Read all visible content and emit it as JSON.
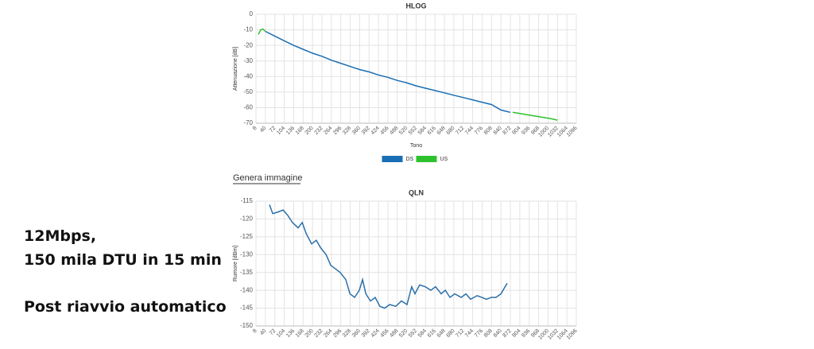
{
  "notes": [
    "12Mbps,",
    "150 mila DTU in 15 min",
    "Post riavvio automatico"
  ],
  "link": "Genera immagine",
  "chart_data": [
    {
      "type": "line",
      "title": "HLOG",
      "xlabel": "Tono",
      "ylabel": "Attenuazione [dB]",
      "xlim": [
        8,
        1096
      ],
      "ylim": [
        -70,
        0
      ],
      "xticks": [
        8,
        40,
        72,
        104,
        136,
        168,
        200,
        232,
        264,
        296,
        328,
        360,
        392,
        424,
        456,
        488,
        520,
        552,
        584,
        616,
        648,
        680,
        712,
        744,
        776,
        808,
        840,
        872,
        904,
        936,
        968,
        1000,
        1032,
        1064,
        1096
      ],
      "yticks": [
        -70,
        -60,
        -50,
        -40,
        -30,
        -20,
        -10,
        0
      ],
      "grid": true,
      "series": [
        {
          "name": "DS",
          "color": "#1a6eb5",
          "x": [
            40,
            72,
            104,
            136,
            168,
            200,
            232,
            264,
            296,
            328,
            360,
            392,
            424,
            456,
            488,
            520,
            552,
            584,
            616,
            648,
            680,
            712,
            744,
            776,
            808,
            840,
            872
          ],
          "values": [
            -11,
            -14,
            -17,
            -20,
            -22.5,
            -25,
            -27,
            -29.5,
            -31.5,
            -33.5,
            -35.5,
            -37,
            -39,
            -40.5,
            -42.5,
            -44,
            -46,
            -47.5,
            -49,
            -50.5,
            -52,
            -53.5,
            -55,
            -56.5,
            -58,
            -61.5,
            -63
          ]
        },
        {
          "name": "US",
          "color": "#2ec12e",
          "x": [
            16,
            24,
            32,
            40,
            56,
            880,
            912,
            944,
            976,
            1008,
            1032
          ],
          "values": [
            -13,
            -10,
            -9.5,
            -11,
            null,
            -63,
            -64,
            -65,
            -66,
            -67,
            -68
          ]
        }
      ]
    },
    {
      "type": "line",
      "title": "QLN",
      "ylabel": "Rumore [dBm]",
      "xlim": [
        8,
        1096
      ],
      "ylim": [
        -150,
        -115
      ],
      "xticks": [
        8,
        40,
        72,
        104,
        136,
        168,
        200,
        232,
        264,
        296,
        328,
        360,
        392,
        424,
        456,
        488,
        520,
        552,
        584,
        616,
        648,
        680,
        712,
        744,
        776,
        808,
        840,
        872,
        904,
        936,
        968,
        1000,
        1032,
        1064,
        1096
      ],
      "yticks": [
        -150,
        -145,
        -140,
        -135,
        -130,
        -125,
        -120,
        -115
      ],
      "grid": true,
      "series": [
        {
          "color": "#2a6fa8",
          "x": [
            54,
            65,
            84,
            100,
            116,
            132,
            151,
            165,
            178,
            197,
            213,
            227,
            246,
            262,
            278,
            294,
            313,
            327,
            343,
            359,
            370,
            381,
            397,
            413,
            429,
            445,
            462,
            483,
            502,
            521,
            537,
            548,
            564,
            583,
            602,
            618,
            637,
            651,
            667,
            683,
            705,
            721,
            737,
            759,
            775,
            791,
            807,
            823,
            840,
            861
          ],
          "values": [
            -116,
            -118.5,
            -118,
            -117.5,
            -119,
            -121,
            -122.5,
            -121,
            -124,
            -127,
            -126,
            -128,
            -130,
            -133,
            -134,
            -135,
            -137,
            -141,
            -142,
            -140,
            -137,
            -141,
            -143,
            -142,
            -144.5,
            -145,
            -144,
            -144.5,
            -143,
            -144,
            -139,
            -141,
            -138.5,
            -139,
            -140,
            -139,
            -141,
            -140,
            -142,
            -141,
            -142,
            -141,
            -142.5,
            -141.5,
            -142,
            -142.5,
            -142,
            -142,
            -141,
            -138
          ]
        }
      ]
    }
  ]
}
